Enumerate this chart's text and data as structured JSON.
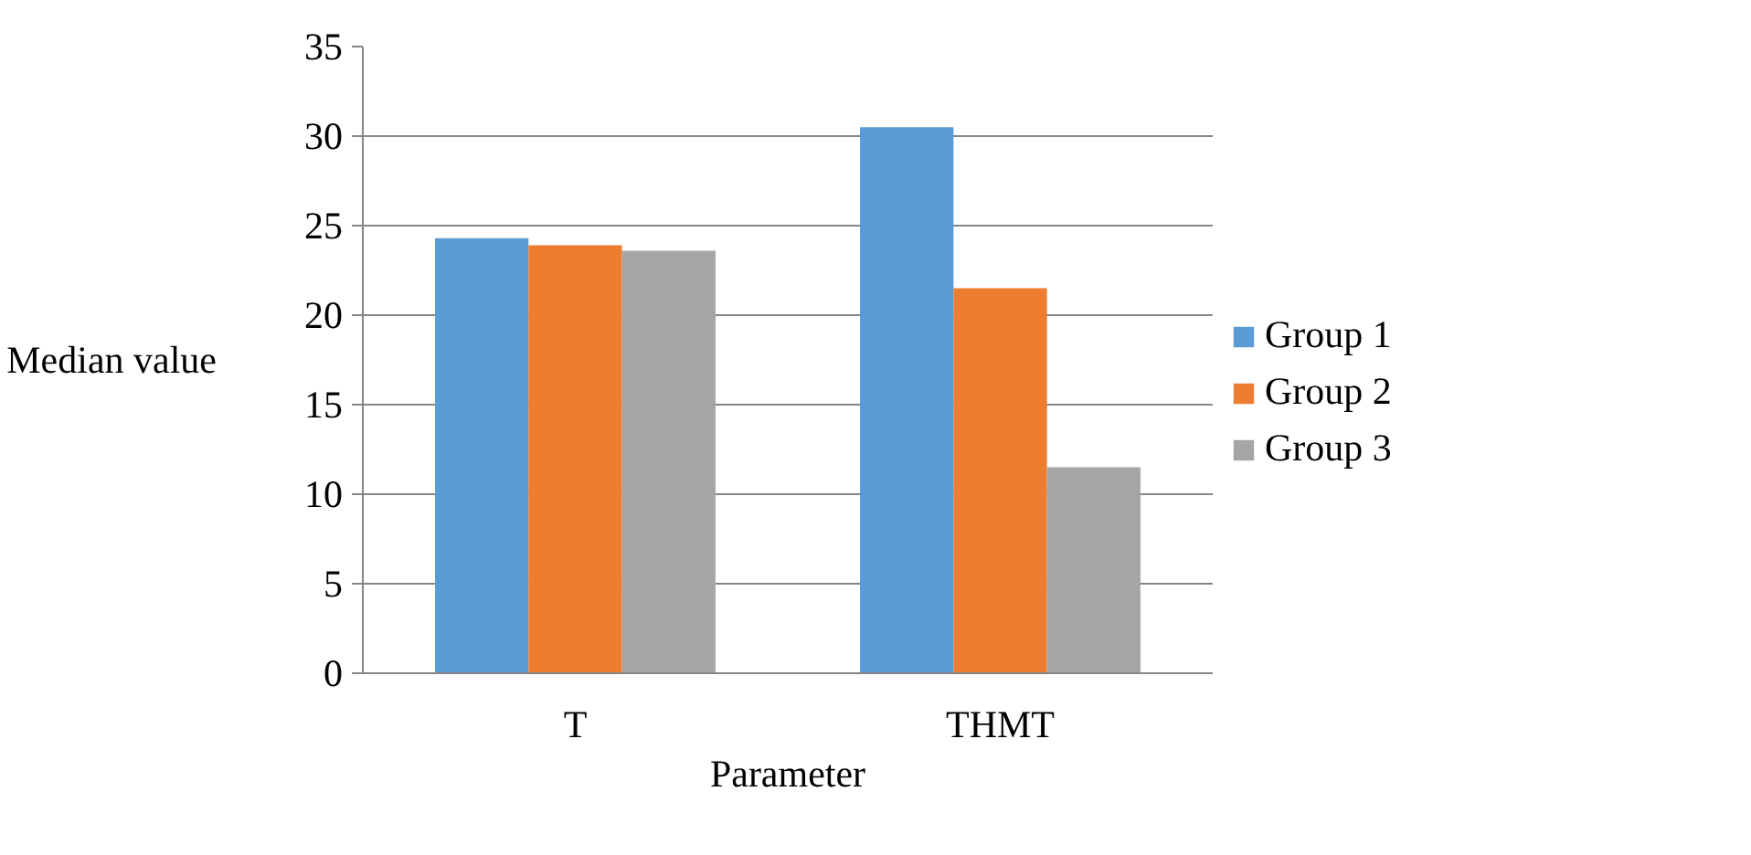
{
  "chart_data": {
    "type": "bar",
    "xlabel": "Parameter",
    "ylabel": "Median value",
    "categories": [
      "T",
      "THMT"
    ],
    "series": [
      {
        "name": "Group 1",
        "color": "#5b9bd5",
        "values": [
          24.3,
          30.5
        ]
      },
      {
        "name": "Group 2",
        "color": "#ed7d31",
        "values": [
          23.9,
          21.5
        ]
      },
      {
        "name": "Group 3",
        "color": "#a5a5a5",
        "values": [
          23.6,
          11.5
        ]
      }
    ],
    "ylim": [
      0,
      35
    ],
    "yticks": [
      0,
      5,
      10,
      15,
      20,
      25,
      30,
      35
    ],
    "grid": "y",
    "legend": "right"
  }
}
